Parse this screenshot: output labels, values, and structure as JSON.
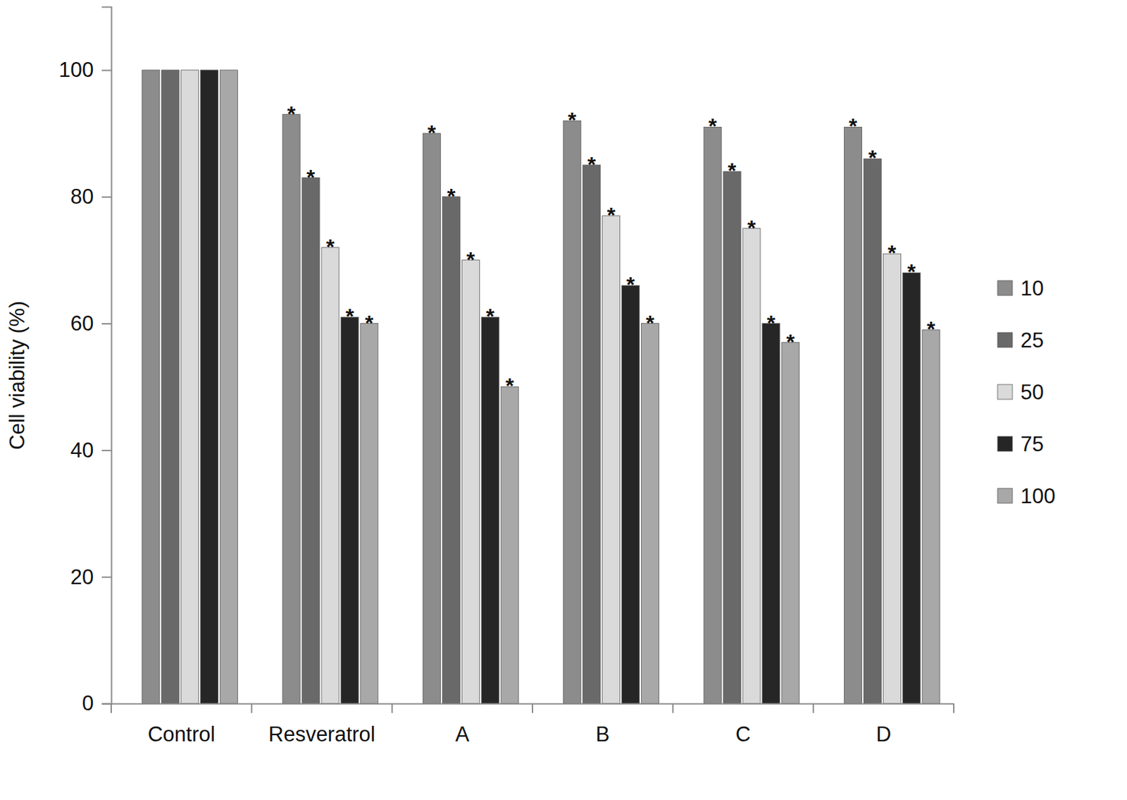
{
  "chart_data": {
    "type": "bar",
    "y_label": "Cell viability (%)",
    "categories": [
      "Control",
      "Resveratrol",
      "A",
      "B",
      "C",
      "D"
    ],
    "series": [
      {
        "name": "10",
        "color": "#8c8c8c",
        "values": [
          100,
          93,
          90,
          92,
          91,
          91
        ],
        "significance": [
          null,
          "*",
          "*",
          "*",
          "*",
          "*"
        ]
      },
      {
        "name": "25",
        "color": "#696969",
        "values": [
          100,
          83,
          80,
          85,
          84,
          86
        ],
        "significance": [
          null,
          "*",
          "*",
          "*",
          "*",
          "*"
        ]
      },
      {
        "name": "50",
        "color": "#dadada",
        "values": [
          100,
          72,
          70,
          77,
          75,
          71
        ],
        "significance": [
          null,
          "*",
          "*",
          "*",
          "*",
          "*"
        ]
      },
      {
        "name": "75",
        "color": "#262626",
        "values": [
          100,
          61,
          61,
          66,
          60,
          68
        ],
        "significance": [
          null,
          "*",
          "*",
          "*",
          "*",
          "*"
        ]
      },
      {
        "name": "100",
        "color": "#a8a8a8",
        "values": [
          100,
          60,
          50,
          60,
          57,
          59
        ],
        "significance": [
          null,
          "*",
          "*",
          "*",
          "*",
          "*"
        ]
      }
    ],
    "ylim": [
      0,
      110
    ],
    "yticks": [
      0,
      20,
      40,
      60,
      80,
      100
    ],
    "grid": false,
    "legend": "right"
  }
}
